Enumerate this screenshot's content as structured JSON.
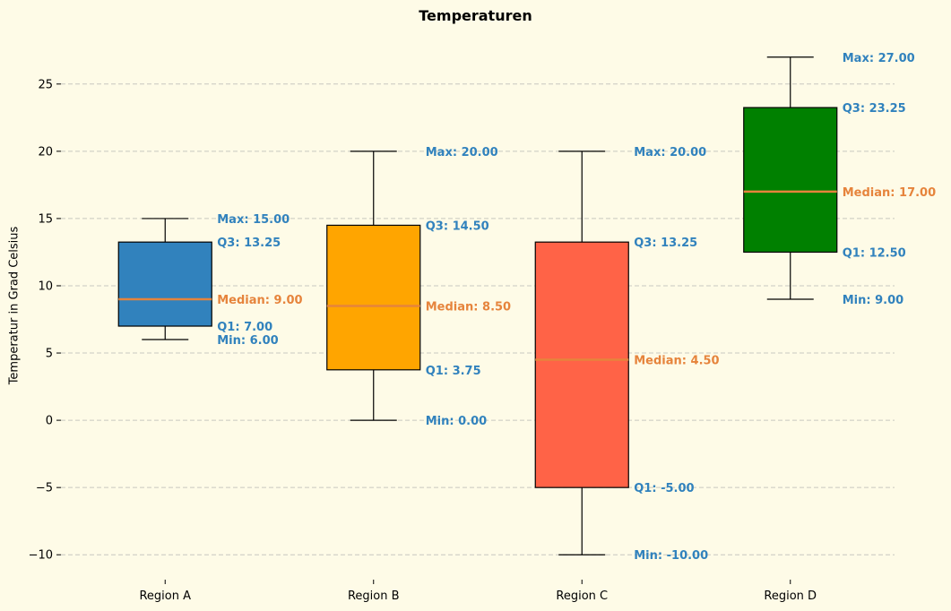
{
  "chart_data": {
    "type": "box",
    "title": "Temperaturen",
    "xlabel": "",
    "ylabel": "Temperatur in Grad Celsius",
    "ylim": [
      -11.85,
      28.85
    ],
    "yticks": [
      -10,
      -5,
      0,
      5,
      10,
      15,
      20,
      25
    ],
    "ytick_labels": [
      "−10",
      "−5",
      "0",
      "5",
      "10",
      "15",
      "20",
      "25"
    ],
    "grid": "y-dashed",
    "categories": [
      "Region A",
      "Region B",
      "Region C",
      "Region D"
    ],
    "boxes": [
      {
        "name": "Region A",
        "min": 6.0,
        "q1": 7.0,
        "median": 9.0,
        "q3": 13.25,
        "max": 15.0,
        "color": "#3182bd",
        "labels": {
          "max": "Max: 15.00",
          "q3": "Q3: 13.25",
          "median": "Median: 9.00",
          "q1": "Q1: 7.00",
          "min": "Min: 6.00"
        }
      },
      {
        "name": "Region B",
        "min": 0.0,
        "q1": 3.75,
        "median": 8.5,
        "q3": 14.5,
        "max": 20.0,
        "color": "#ffa500",
        "labels": {
          "max": "Max: 20.00",
          "q3": "Q3: 14.50",
          "median": "Median: 8.50",
          "q1": "Q1: 3.75",
          "min": "Min: 0.00"
        }
      },
      {
        "name": "Region C",
        "min": -10.0,
        "q1": -5.0,
        "median": 4.5,
        "q3": 13.25,
        "max": 20.0,
        "color": "#ff6347",
        "labels": {
          "max": "Max: 20.00",
          "q3": "Q3: 13.25",
          "median": "Median: 4.50",
          "q1": "Q1: -5.00",
          "min": "Min: -10.00"
        }
      },
      {
        "name": "Region D",
        "min": 9.0,
        "q1": 12.5,
        "median": 17.0,
        "q3": 23.25,
        "max": 27.0,
        "color": "#008000",
        "labels": {
          "max": "Max: 27.00",
          "q3": "Q3: 23.25",
          "median": "Median: 17.00",
          "q1": "Q1: 12.50",
          "min": "Min: 9.00"
        }
      }
    ],
    "median_color": "#e6843c",
    "label_color": "#3182bd",
    "median_label_color": "#e6843c"
  }
}
